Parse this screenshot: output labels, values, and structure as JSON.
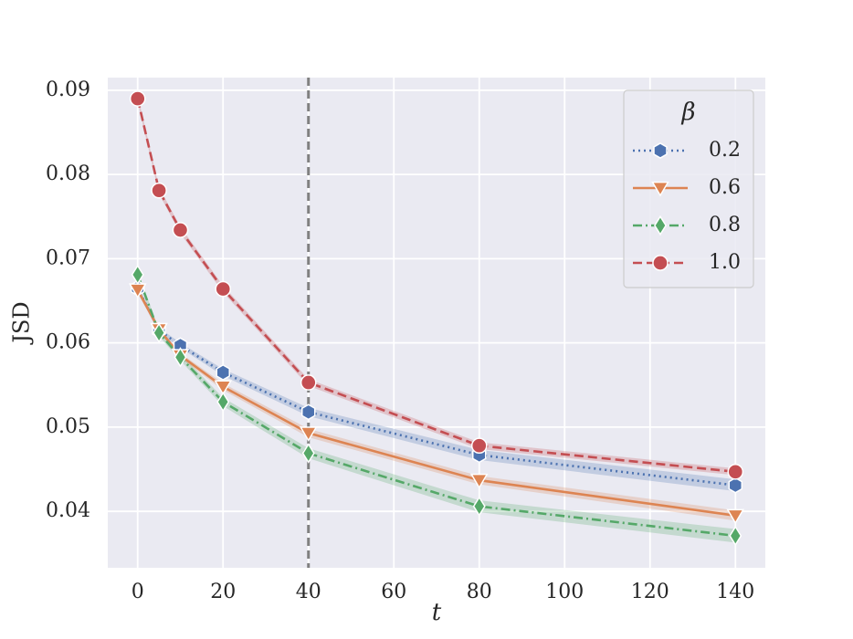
{
  "chart_data": {
    "type": "line",
    "title": "",
    "xlabel": "t",
    "ylabel": "JSD",
    "xlim": [
      -7,
      147
    ],
    "ylim": [
      0.0333,
      0.0915
    ],
    "xticks": [
      0,
      20,
      40,
      60,
      80,
      100,
      120,
      140
    ],
    "xtick_labels": [
      "0",
      "20",
      "40",
      "60",
      "80",
      "100",
      "120",
      "140"
    ],
    "yticks": [
      0.04,
      0.05,
      0.06,
      0.07,
      0.08,
      0.09
    ],
    "ytick_labels": [
      "0.04",
      "0.05",
      "0.06",
      "0.07",
      "0.08",
      "0.09"
    ],
    "grid": true,
    "x": [
      0,
      5,
      10,
      20,
      40,
      80,
      140
    ],
    "vline": {
      "x": 40,
      "style": "dashed",
      "color": "#808080"
    },
    "legend": {
      "title": "β",
      "position": "top-right"
    },
    "series": [
      {
        "name": "0.2",
        "color": "#4c72b0",
        "marker": "hexagon",
        "linestyle": "dotted",
        "values": [
          0.0665,
          0.0615,
          0.0597,
          0.0565,
          0.0518,
          0.0467,
          0.0431
        ],
        "band": [
          0.0004,
          0.0003,
          0.0003,
          0.0004,
          0.0005,
          0.0006,
          0.0007
        ]
      },
      {
        "name": "0.6",
        "color": "#dd8452",
        "marker": "triangle-down",
        "linestyle": "solid",
        "values": [
          0.0663,
          0.0616,
          0.0585,
          0.0548,
          0.0493,
          0.0437,
          0.0395
        ],
        "band": [
          0.0004,
          0.0003,
          0.0003,
          0.0004,
          0.0005,
          0.0005,
          0.0006
        ]
      },
      {
        "name": "0.8",
        "color": "#55a868",
        "marker": "diamond",
        "linestyle": "dashdot",
        "values": [
          0.0681,
          0.0612,
          0.0583,
          0.053,
          0.0469,
          0.0406,
          0.0371
        ],
        "band": [
          0.0004,
          0.0004,
          0.0004,
          0.0005,
          0.0006,
          0.0007,
          0.0008
        ]
      },
      {
        "name": "1.0",
        "color": "#c44e52",
        "marker": "circle",
        "linestyle": "dashed",
        "values": [
          0.089,
          0.0781,
          0.0734,
          0.0664,
          0.0553,
          0.0478,
          0.0447
        ],
        "band": [
          0.0004,
          0.0004,
          0.0004,
          0.0004,
          0.0004,
          0.0004,
          0.0004
        ]
      }
    ]
  }
}
